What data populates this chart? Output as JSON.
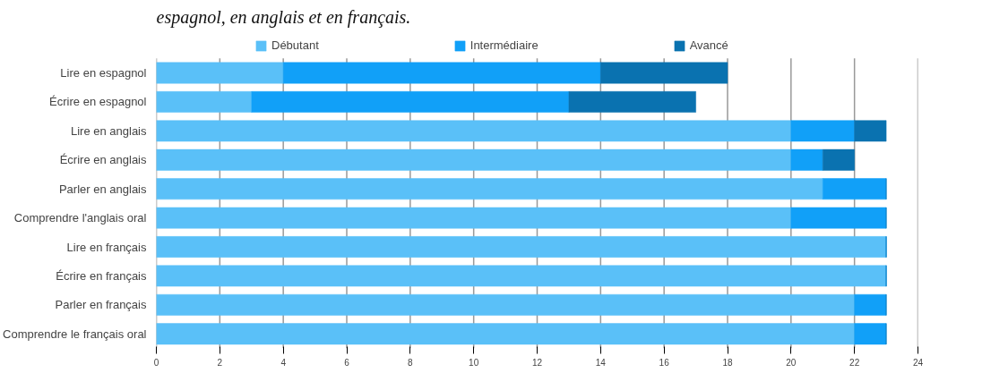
{
  "chart_data": {
    "type": "bar",
    "orientation": "horizontal",
    "stacked": true,
    "title": "espagnol, en anglais et en français.",
    "categories": [
      "Lire en espagnol",
      "Écrire en espagnol",
      "Lire en anglais",
      "Écrire en anglais",
      "Parler en anglais",
      "Comprendre l'anglais oral",
      "Lire en français",
      "Écrire en français",
      "Parler en français",
      "Comprendre le français oral"
    ],
    "series": [
      {
        "name": "Débutant",
        "color": "#5ac0f8",
        "values": [
          4,
          3,
          20,
          20,
          21,
          20,
          23,
          23,
          22,
          22
        ]
      },
      {
        "name": "Intermédiaire",
        "color": "#11a0f8",
        "values": [
          10,
          10,
          2,
          1,
          2,
          3,
          0,
          0,
          1,
          1
        ]
      },
      {
        "name": "Avancé",
        "color": "#0a72b0",
        "values": [
          4,
          4,
          1,
          1,
          0,
          0,
          0,
          0,
          0,
          0
        ]
      }
    ],
    "xlim": [
      0,
      24
    ],
    "xticks": [
      0,
      2,
      4,
      6,
      8,
      10,
      12,
      14,
      16,
      18,
      20,
      22,
      24
    ],
    "grid": "x",
    "legend": "top"
  }
}
